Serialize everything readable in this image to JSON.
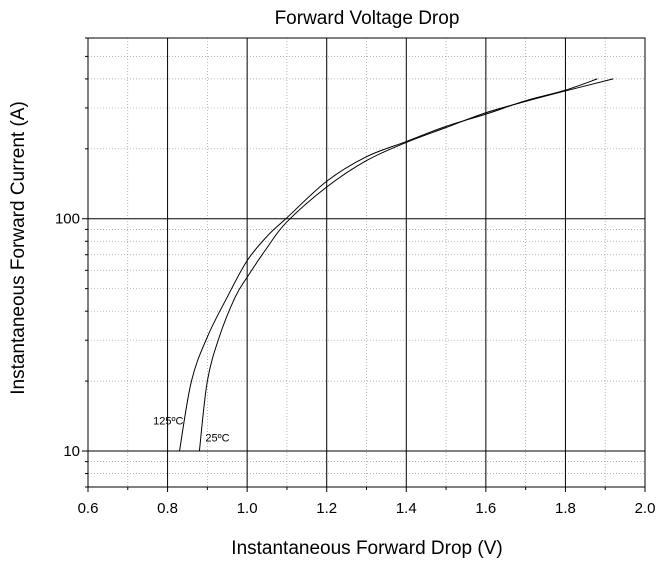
{
  "chart_data": {
    "type": "line",
    "title": "Forward Voltage Drop",
    "xlabel": "Instantaneous Forward Drop (V)",
    "ylabel": "Instantaneous Forward Current (A)",
    "xlim": [
      0.6,
      2.0
    ],
    "ylim": [
      7,
      600
    ],
    "yscale": "log",
    "grid": true,
    "x_ticks": [
      {
        "value": 0.6,
        "label": "0.6"
      },
      {
        "value": 0.8,
        "label": "0.8"
      },
      {
        "value": 1.0,
        "label": "1.0"
      },
      {
        "value": 1.2,
        "label": "1.2"
      },
      {
        "value": 1.4,
        "label": "1.4"
      },
      {
        "value": 1.6,
        "label": "1.6"
      },
      {
        "value": 1.8,
        "label": "1.8"
      },
      {
        "value": 2.0,
        "label": "2.0"
      }
    ],
    "y_ticks": [
      {
        "value": 10,
        "label": "10"
      },
      {
        "value": 100,
        "label": "100"
      }
    ],
    "series": [
      {
        "name": "125ºC",
        "x": [
          0.83,
          0.86,
          0.9,
          0.95,
          1.0,
          1.05,
          1.1,
          1.2,
          1.3,
          1.4,
          1.5,
          1.6,
          1.7,
          1.8,
          1.88
        ],
        "y": [
          10,
          20,
          31,
          46,
          66,
          84,
          101,
          145,
          185,
          215,
          250,
          282,
          322,
          358,
          400
        ]
      },
      {
        "name": "25ºC",
        "x": [
          0.88,
          0.9,
          0.93,
          0.97,
          1.0,
          1.05,
          1.1,
          1.2,
          1.3,
          1.4,
          1.5,
          1.6,
          1.7,
          1.8,
          1.92
        ],
        "y": [
          10,
          20,
          31,
          46,
          56,
          75,
          97,
          137,
          178,
          213,
          247,
          286,
          320,
          355,
          400
        ]
      }
    ],
    "annotations": [
      {
        "text": "125ºC",
        "x": 0.84,
        "y": 13
      },
      {
        "text": "25ºC",
        "x": 0.895,
        "y": 11
      }
    ]
  }
}
